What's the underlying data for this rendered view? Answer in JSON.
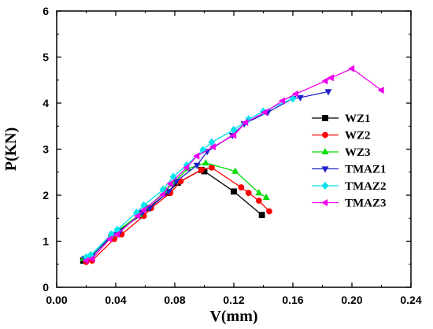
{
  "chart_data": {
    "type": "line",
    "xlabel": "V(mm)",
    "ylabel": "P(KN)",
    "xlim": [
      0.0,
      0.24
    ],
    "ylim": [
      0,
      6
    ],
    "xticks": [
      "0.00",
      "0.04",
      "0.08",
      "0.12",
      "0.16",
      "0.20",
      "0.24"
    ],
    "yticks": [
      "0",
      "1",
      "2",
      "3",
      "4",
      "5",
      "6"
    ],
    "legend_position": "right",
    "grid": false,
    "series": [
      {
        "name": "WZ1",
        "color": "#000000",
        "marker": "square",
        "x": [
          0.018,
          0.022,
          0.037,
          0.042,
          0.057,
          0.062,
          0.075,
          0.082,
          0.098,
          0.1,
          0.12,
          0.139
        ],
        "y": [
          0.58,
          0.62,
          1.1,
          1.22,
          1.57,
          1.72,
          2.05,
          2.27,
          2.55,
          2.52,
          2.08,
          1.57
        ]
      },
      {
        "name": "WZ2",
        "color": "#ff0000",
        "marker": "circle",
        "x": [
          0.02,
          0.024,
          0.039,
          0.044,
          0.059,
          0.064,
          0.077,
          0.084,
          0.098,
          0.105,
          0.125,
          0.13,
          0.137,
          0.144
        ],
        "y": [
          0.55,
          0.58,
          1.05,
          1.15,
          1.55,
          1.72,
          2.05,
          2.3,
          2.55,
          2.6,
          2.17,
          2.05,
          1.88,
          1.65
        ]
      },
      {
        "name": "WZ3",
        "color": "#00dd00",
        "marker": "triangle-up",
        "x": [
          0.018,
          0.023,
          0.037,
          0.041,
          0.056,
          0.061,
          0.074,
          0.08,
          0.089,
          0.101,
          0.121,
          0.137,
          0.142
        ],
        "y": [
          0.62,
          0.66,
          1.12,
          1.22,
          1.58,
          1.73,
          2.1,
          2.3,
          2.58,
          2.7,
          2.52,
          2.05,
          1.95
        ]
      },
      {
        "name": "TMAZ1",
        "color": "#2222cc",
        "marker": "triangle-down",
        "x": [
          0.019,
          0.024,
          0.038,
          0.043,
          0.058,
          0.063,
          0.076,
          0.081,
          0.095,
          0.102,
          0.119,
          0.127,
          0.143,
          0.16,
          0.165,
          0.184
        ],
        "y": [
          0.62,
          0.68,
          1.15,
          1.22,
          1.62,
          1.72,
          2.08,
          2.3,
          2.65,
          2.95,
          3.3,
          3.55,
          3.8,
          4.1,
          4.12,
          4.25
        ]
      },
      {
        "name": "TMAZ2",
        "color": "#00e5ee",
        "marker": "diamond",
        "x": [
          0.02,
          0.023,
          0.037,
          0.041,
          0.054,
          0.059,
          0.072,
          0.079,
          0.088,
          0.099,
          0.105,
          0.12,
          0.13,
          0.14,
          0.16
        ],
        "y": [
          0.65,
          0.7,
          1.15,
          1.25,
          1.62,
          1.78,
          2.12,
          2.4,
          2.65,
          2.98,
          3.15,
          3.42,
          3.65,
          3.82,
          4.1
        ]
      },
      {
        "name": "TMAZ3",
        "color": "#ee00ee",
        "marker": "triangle-left",
        "x": [
          0.02,
          0.024,
          0.036,
          0.041,
          0.055,
          0.059,
          0.072,
          0.077,
          0.088,
          0.095,
          0.106,
          0.12,
          0.128,
          0.141,
          0.153,
          0.162,
          0.182,
          0.186,
          0.2,
          0.22
        ],
        "y": [
          0.58,
          0.62,
          1.05,
          1.15,
          1.55,
          1.68,
          2.02,
          2.25,
          2.6,
          2.85,
          3.05,
          3.3,
          3.58,
          3.8,
          4.05,
          4.2,
          4.48,
          4.55,
          4.75,
          4.28
        ]
      }
    ]
  }
}
